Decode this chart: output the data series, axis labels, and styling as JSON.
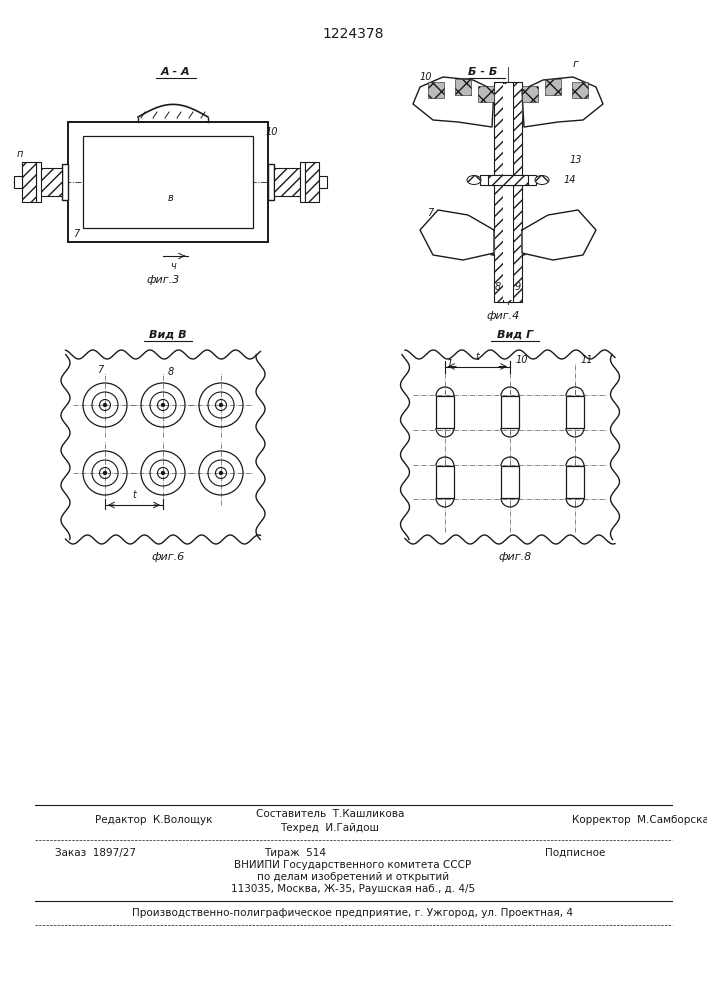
{
  "title": "1224378",
  "bg_color": "#ffffff",
  "line_color": "#1a1a1a",
  "fig3_label": "А - А",
  "fig4_label": "Б - Б",
  "fig5_label": "Вид В",
  "fig6_label": "Вид Г",
  "fig3_caption": "фиг.3",
  "fig4_caption": "фиг.4",
  "fig5_caption": "фиг.6",
  "fig6_caption": "фиг.8",
  "footer_ed": "Редактор  К.Волощук",
  "footer_sost": "Составитель  Т.Кашликова",
  "footer_tech": "Техред  И.Гайдош",
  "footer_korr": "Корректор  М.Самборская",
  "footer_zakaz": "Заказ  1897/27",
  "footer_tirazh": "Тираж  514",
  "footer_podp": "Подписное",
  "footer_vnipi1": "ВНИИПИ Государственного комитета СССР",
  "footer_vnipi2": "по делам изобретений и открытий",
  "footer_vnipi3": "113035, Москва, Ж-35, Раушская наб., д. 4/5",
  "footer_last": "Производственно-полиграфическое предприятие, г. Ужгород, ул. Проектная, 4"
}
